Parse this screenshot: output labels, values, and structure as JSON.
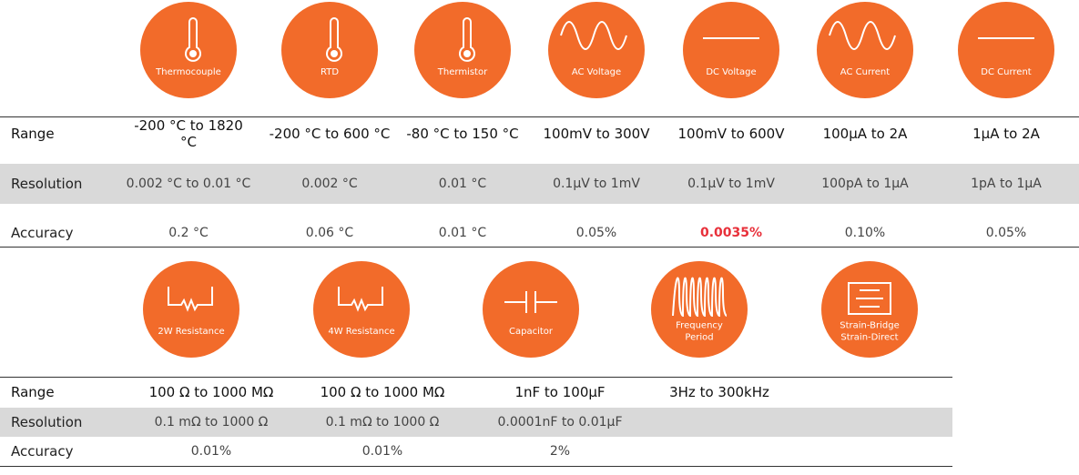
{
  "top": {
    "icons": [
      [
        "Thermocouple"
      ],
      [
        "RTD"
      ],
      [
        "Thermistor"
      ],
      [
        "AC Voltage"
      ],
      [
        "DC Voltage"
      ],
      [
        "AC Current"
      ],
      [
        "DC Current"
      ]
    ],
    "rows": [
      {
        "label": "Range",
        "cells": [
          "-200 °C to 1820 °C",
          "-200 °C to 600 °C",
          "-80 °C to 150 °C",
          "100mV to 300V",
          "100mV to 600V",
          "100μA to 2A",
          "1μA to 2A"
        ]
      },
      {
        "label": "Resolution",
        "cells": [
          "0.002 °C to 0.01 °C",
          "0.002 °C",
          "0.01 °C",
          "0.1μV to 1mV",
          "0.1μV to 1mV",
          "100pA to 1μA",
          "1pA to 1μA"
        ]
      },
      {
        "label": "Accuracy",
        "cells": [
          "0.2 °C",
          "0.06 °C",
          "0.01 °C",
          "0.05%",
          "0.0035%",
          "0.10%",
          "0.05%"
        ]
      }
    ]
  },
  "bottom": {
    "icons": [
      [
        "2W Resistance"
      ],
      [
        "4W Resistance"
      ],
      [
        "Capacitor"
      ],
      [
        "Frequency",
        "Period"
      ],
      [
        "Strain-Bridge",
        "Strain-Direct"
      ]
    ],
    "rows": [
      {
        "label": "Range",
        "cells": [
          "100 Ω to 1000 MΩ",
          "100 Ω to 1000 MΩ",
          "1nF to 100μF",
          "3Hz to 300kHz"
        ]
      },
      {
        "label": "Resolution",
        "cells": [
          "0.1 mΩ to 1000 Ω",
          "0.1 mΩ to 1000 Ω",
          "0.0001nF to 0.01μF"
        ]
      },
      {
        "label": "Accuracy",
        "cells": [
          "0.01%",
          "0.01%",
          "2%"
        ]
      }
    ]
  }
}
